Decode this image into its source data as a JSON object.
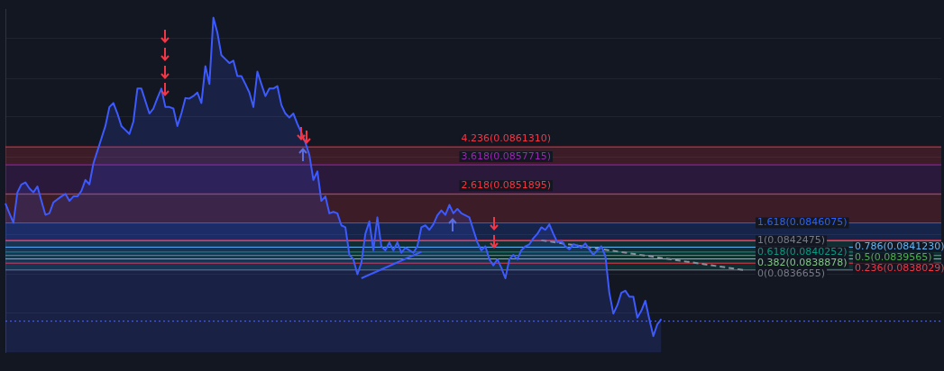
{
  "chart_data": {
    "type": "area",
    "categories": [
      null,
      null,
      null,
      null,
      null,
      null,
      null,
      null,
      null,
      null,
      null,
      null,
      null,
      null,
      null,
      null,
      null,
      null,
      null,
      null,
      null,
      null,
      null,
      null,
      null,
      null,
      null,
      null,
      null,
      null,
      null,
      null,
      null,
      null,
      null,
      null,
      null,
      null,
      null,
      null,
      null,
      null,
      null,
      null,
      null,
      null,
      null,
      null,
      null,
      null,
      null,
      null,
      null,
      null,
      null,
      null,
      null,
      null,
      null,
      null,
      null,
      null,
      null,
      null,
      null,
      null,
      null,
      null,
      null,
      null,
      null,
      null,
      null,
      null,
      null,
      null,
      null,
      null,
      null,
      null,
      null,
      null,
      null,
      null,
      null,
      null,
      null,
      null,
      null,
      null,
      null,
      null,
      null,
      null,
      null,
      null,
      null,
      null,
      null,
      null,
      null,
      null,
      null,
      null,
      null,
      null,
      null,
      null,
      null,
      null,
      null,
      null,
      null,
      null,
      null,
      null,
      null,
      null,
      null,
      null,
      null,
      null,
      null,
      null,
      null,
      null,
      null,
      null,
      null,
      null,
      null,
      null,
      null,
      null,
      null,
      null,
      null,
      null,
      null,
      null,
      null,
      null,
      null,
      null,
      null,
      null,
      null,
      null,
      null,
      null,
      null,
      null,
      null,
      null,
      null,
      null,
      null,
      null,
      null,
      null,
      null,
      null,
      null,
      null,
      null,
      null,
      null,
      null,
      null,
      null,
      null,
      null,
      null,
      null,
      null,
      null,
      null,
      null,
      null,
      null,
      null,
      null,
      null,
      null,
      null,
      null,
      null,
      null,
      null,
      null,
      null,
      null,
      null,
      null,
      null,
      null,
      null,
      null,
      null,
      null,
      null,
      null,
      null,
      null,
      null,
      null,
      null,
      null,
      null,
      null,
      null,
      null,
      null,
      null,
      null,
      null,
      null,
      null,
      null,
      null,
      null,
      null,
      null,
      null,
      null,
      null,
      null,
      null,
      null,
      null,
      null,
      null,
      null,
      null,
      null
    ],
    "ylim": [
      0.08201,
      0.08889
    ],
    "yticks": [
      {
        "value": 0.0828,
        "label": null
      },
      {
        "value": 0.08359,
        "label": null
      },
      {
        "value": 0.08437,
        "label": null
      },
      {
        "value": 0.08516,
        "label": null
      },
      {
        "value": 0.08593,
        "label": null
      },
      {
        "value": 0.08673,
        "label": null
      },
      {
        "value": 0.0875,
        "label": null
      },
      {
        "value": 0.0883,
        "label": null
      }
    ],
    "grid": "y",
    "marker": "none",
    "series": [
      {
        "color": "#3d5afe",
        "values": [
          0.085,
          0.0848,
          0.08461,
          0.08522,
          0.08538,
          0.08542,
          0.0853,
          0.08522,
          0.08534,
          0.08505,
          0.08477,
          0.0848,
          0.08502,
          0.08508,
          0.08514,
          0.08519,
          0.08505,
          0.08514,
          0.08514,
          0.08525,
          0.08547,
          0.08538,
          0.0858,
          0.08605,
          0.0863,
          0.08655,
          0.08693,
          0.08701,
          0.0868,
          0.08655,
          0.08647,
          0.08639,
          0.08664,
          0.0873,
          0.0873,
          0.08705,
          0.0868,
          0.0869,
          0.08711,
          0.0873,
          0.08693,
          0.08693,
          0.0869,
          0.08655,
          0.0868,
          0.08711,
          0.0871,
          0.08715,
          0.08722,
          0.08701,
          0.08775,
          0.08739,
          0.08872,
          0.08842,
          0.08797,
          0.08789,
          0.08781,
          0.08786,
          0.08755,
          0.08755,
          0.08739,
          0.08722,
          0.08693,
          0.08764,
          0.08739,
          0.08715,
          0.0873,
          0.0873,
          0.08735,
          0.08697,
          0.0868,
          0.08672,
          0.0868,
          0.08659,
          0.08642,
          0.08622,
          0.08597,
          0.08547,
          0.08564,
          0.08505,
          0.08514,
          0.0848,
          0.08483,
          0.0848,
          0.08456,
          0.08452,
          0.08397,
          0.08388,
          0.08358,
          0.08381,
          0.08439,
          0.08464,
          0.08406,
          0.08472,
          0.08414,
          0.08406,
          0.08422,
          0.08406,
          0.08422,
          0.08401,
          0.08411,
          0.08406,
          0.08401,
          0.08414,
          0.08452,
          0.08456,
          0.08447,
          0.08458,
          0.08476,
          0.08486,
          0.08477,
          0.08497,
          0.0848,
          0.08489,
          0.0848,
          0.08476,
          0.08472,
          0.08447,
          0.08422,
          0.08406,
          0.08414,
          0.08388,
          0.08376,
          0.08388,
          0.08371,
          0.0835,
          0.08388,
          0.08397,
          0.08388,
          0.08406,
          0.08414,
          0.08418,
          0.0843,
          0.08439,
          0.08452,
          0.08447,
          0.08458,
          0.08439,
          0.08422,
          0.08425,
          0.08414,
          0.08408,
          0.08418,
          0.08416,
          0.08411,
          0.0842,
          0.08408,
          0.08397,
          0.08406,
          0.08414,
          0.08395,
          0.08321,
          0.08279,
          0.08296,
          0.08321,
          0.08325,
          0.08313,
          0.08313,
          0.08271,
          0.08285,
          0.08305,
          0.08268,
          0.08234,
          0.08258,
          0.08268,
          null,
          null,
          null,
          null,
          null,
          null,
          null,
          null,
          null,
          null,
          null,
          null,
          null,
          null,
          null,
          null,
          null,
          null,
          null,
          null,
          null,
          null,
          null,
          null,
          null,
          null,
          null,
          null,
          null,
          null,
          null,
          null,
          null,
          null,
          null,
          null,
          null,
          null,
          null,
          null,
          null,
          null,
          null,
          null,
          null,
          null,
          null,
          null,
          null,
          null,
          null,
          null,
          null,
          null,
          null,
          null,
          null,
          null,
          null,
          null,
          null,
          null,
          null,
          null,
          null,
          null,
          null,
          null,
          null,
          null
        ]
      },
      {
        "type": "line",
        "color": "#3d5afe",
        "values": [
          null,
          null,
          null,
          null,
          null,
          null,
          null,
          null,
          null,
          null,
          null,
          null,
          null,
          null,
          null,
          null,
          null,
          null,
          null,
          null,
          null,
          null,
          null,
          null,
          null,
          null,
          null,
          null,
          null,
          null,
          null,
          null,
          null,
          null,
          null,
          null,
          null,
          null,
          null,
          null,
          null,
          null,
          null,
          null,
          null,
          null,
          null,
          null,
          null,
          null,
          null,
          null,
          null,
          null,
          null,
          null,
          null,
          null,
          null,
          null,
          null,
          null,
          null,
          null,
          null,
          null,
          null,
          null,
          null,
          null,
          null,
          null,
          null,
          null,
          null,
          null,
          null,
          null,
          null,
          null,
          null,
          null,
          null,
          null,
          null,
          null,
          null,
          null,
          null,
          0.0835,
          null,
          null,
          null,
          null,
          null,
          null,
          null,
          null,
          null,
          null,
          null,
          null,
          null,
          null,
          0.08403,
          null,
          null,
          null,
          null,
          null,
          null,
          null,
          null,
          null,
          null,
          null,
          null,
          null,
          null,
          null,
          null,
          null,
          null,
          null,
          null,
          null,
          null,
          null,
          null,
          null,
          null,
          null,
          null,
          null,
          null,
          null,
          null,
          null,
          null,
          null,
          null,
          null,
          null,
          null,
          null,
          null,
          null,
          null,
          null,
          null,
          null,
          null,
          null,
          null,
          null,
          null,
          null,
          null,
          null,
          null,
          null,
          null,
          null,
          null,
          null,
          null,
          null,
          null,
          null,
          null,
          null,
          null,
          null,
          null,
          null,
          null,
          null,
          null,
          null,
          null,
          null,
          null,
          null,
          null,
          null,
          null,
          null,
          null,
          null,
          null,
          null,
          null,
          null,
          null,
          null,
          null,
          null,
          null,
          null,
          null,
          null,
          null,
          null,
          null,
          null,
          null,
          null,
          null,
          null,
          null,
          null,
          null,
          null,
          null,
          null,
          null,
          null,
          null,
          null,
          null,
          null,
          null,
          null,
          null,
          null,
          null,
          null,
          null,
          null,
          null,
          null,
          null,
          null,
          null,
          null
        ]
      },
      {
        "type": "line",
        "color": "#8a8f9c",
        "line_style": "dashed",
        "values": [
          null,
          null,
          null,
          null,
          null,
          null,
          null,
          null,
          null,
          null,
          null,
          null,
          null,
          null,
          null,
          null,
          null,
          null,
          null,
          null,
          null,
          null,
          null,
          null,
          null,
          null,
          null,
          null,
          null,
          null,
          null,
          null,
          null,
          null,
          null,
          null,
          null,
          null,
          null,
          null,
          null,
          null,
          null,
          null,
          null,
          null,
          null,
          null,
          null,
          null,
          null,
          null,
          null,
          null,
          null,
          null,
          null,
          null,
          null,
          null,
          null,
          null,
          null,
          null,
          null,
          null,
          null,
          null,
          null,
          null,
          null,
          null,
          null,
          null,
          null,
          null,
          null,
          null,
          null,
          null,
          null,
          null,
          null,
          null,
          null,
          null,
          null,
          null,
          null,
          null,
          null,
          null,
          null,
          null,
          null,
          null,
          null,
          null,
          null,
          null,
          null,
          null,
          null,
          null,
          null,
          null,
          null,
          null,
          null,
          null,
          null,
          null,
          null,
          null,
          null,
          null,
          null,
          null,
          null,
          null,
          null,
          null,
          null,
          null,
          null,
          null,
          null,
          null,
          null,
          null,
          null,
          null,
          null,
          null,
          0.08426,
          null,
          null,
          null,
          null,
          null,
          null,
          null,
          null,
          null,
          null,
          null,
          null,
          null,
          null,
          null,
          null,
          null,
          null,
          null,
          null,
          null,
          null,
          null,
          null,
          null,
          null,
          null,
          null,
          null,
          null,
          null,
          null,
          null,
          null,
          null,
          null,
          null,
          null,
          null,
          null,
          null,
          null,
          null,
          null,
          null,
          null,
          null,
          null,
          null,
          null,
          0.08366,
          null,
          null,
          null,
          null,
          null,
          null,
          null,
          null,
          null,
          null,
          null,
          null,
          null,
          null,
          null,
          null,
          null,
          null,
          null,
          null,
          null,
          null,
          null,
          null,
          null,
          null,
          null,
          null,
          null,
          null,
          null,
          null,
          null,
          null,
          null,
          null,
          null,
          null,
          null,
          null,
          null,
          null,
          null,
          null,
          null,
          null,
          null,
          null,
          null
        ]
      }
    ],
    "bands": [
      {
        "axis": "y",
        "from": 0.0857715,
        "to": 0.086131,
        "color": "#f23645"
      },
      {
        "axis": "y",
        "from": 0.0851895,
        "to": 0.0857715,
        "color": "#9c27b0"
      },
      {
        "axis": "y",
        "from": 0.0846075,
        "to": 0.0851895,
        "color": "#f23645"
      },
      {
        "axis": "y",
        "from": 0.0842475,
        "to": 0.0846075,
        "color": "#2962ff"
      },
      {
        "axis": "y",
        "from": 0.0836655,
        "to": 0.0842475,
        "color": "#089981"
      }
    ],
    "ref_lines": [
      {
        "axis": "y",
        "value": 0.086131,
        "label": "4.236(0.0861310)",
        "color": "#f23645"
      },
      {
        "axis": "y",
        "value": 0.0857715,
        "label": "3.618(0.0857715)",
        "color": "#9c27b0"
      },
      {
        "axis": "y",
        "value": 0.0851895,
        "label": "2.618(0.0851895)",
        "color": "#f23645"
      },
      {
        "axis": "y",
        "value": 0.0846075,
        "label": "1.618(0.0846075)",
        "color": "#2962ff"
      },
      {
        "axis": "y",
        "value": 0.0842475,
        "label": "1(0.0842475)",
        "color": "#787b86"
      },
      {
        "axis": "y",
        "value": 0.084123,
        "label": "0.786(0.0841230)",
        "color": "#64b5f6"
      },
      {
        "axis": "y",
        "value": 0.0840252,
        "label": "0.618(0.0840252)",
        "color": "#089981"
      },
      {
        "axis": "y",
        "value": 0.0839565,
        "label": "0.5(0.0839565)",
        "color": "#4caf50"
      },
      {
        "axis": "y",
        "value": 0.0838878,
        "label": "0.382(0.0838878)",
        "color": "#81c784"
      },
      {
        "axis": "y",
        "value": 0.0838029,
        "label": "0.236(0.0838029)",
        "color": "#f23645"
      },
      {
        "axis": "y",
        "value": 0.0836655,
        "label": "0(0.0836655)",
        "color": "#787b86"
      },
      {
        "axis": "y",
        "value": 0.08426,
        "color": "#f23645"
      },
      {
        "axis": "y",
        "value": 0.08264,
        "color": "#5b6ee1",
        "line_style": "dotted"
      }
    ]
  }
}
